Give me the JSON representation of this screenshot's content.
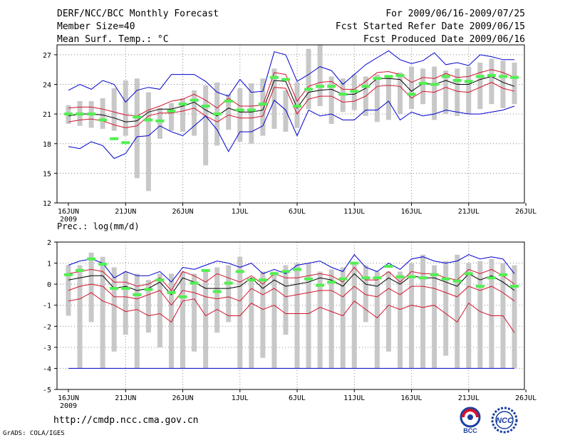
{
  "header": {
    "title": "DERF/NCC/BCC Monthly Forecast",
    "member_size": "Member Size=40",
    "variable": "Mean Surf. Temp.: °C",
    "period": "For 2009/06/16-2009/07/25",
    "start_date": "Fcst Started Refer Date 2009/06/15",
    "produced_date": "Fcst Produced Date 2009/06/16"
  },
  "precip_label": "Prec.: log(mm/d)",
  "footer": {
    "url": "http://cmdp.ncc.cma.gov.cn",
    "grads": "GrADS: COLA/IGES",
    "logo_bcc": "BCC",
    "logo_ncc": "NCC"
  },
  "colors": {
    "box": "#c8c8c8",
    "obs": "#50f050",
    "mean": "#000000",
    "spread": "#d2142d",
    "extreme": "#0000d0",
    "grid": "#888888"
  },
  "chart_data": [
    {
      "type": "box-ensemble",
      "title": "Mean Surf. Temp.: °C",
      "x_labels": [
        "16JUN",
        "21JUN",
        "26JUN",
        "1JUL",
        "6JUL",
        "11JUL",
        "16JUL",
        "21JUL",
        "26JUL"
      ],
      "x_sublabel": "2009",
      "days": 40,
      "ylim": [
        12,
        28
      ],
      "yticks": [
        12,
        15,
        18,
        21,
        24,
        27
      ],
      "box_low": [
        20.0,
        19.8,
        19.6,
        19.5,
        19.3,
        18.8,
        14.5,
        13.2,
        18.5,
        19.3,
        19.2,
        18.8,
        15.8,
        17.8,
        19.4,
        18.2,
        18.0,
        18.8,
        19.5,
        19.2,
        19.6,
        21.5,
        21.8,
        20.0,
        21.2,
        21.4,
        20.8,
        20.2,
        20.4,
        21.0,
        21.5,
        22.0,
        20.4,
        21.0,
        20.8,
        21.0,
        21.5,
        22.0,
        21.6,
        22.0
      ],
      "box_high": [
        21.9,
        22.3,
        22.3,
        22.6,
        23.6,
        24.4,
        24.6,
        23.2,
        21.6,
        22.1,
        22.6,
        23.4,
        23.9,
        24.2,
        23.0,
        23.6,
        24.1,
        24.6,
        25.6,
        23.4,
        24.2,
        27.6,
        28.0,
        24.8,
        24.6,
        25.0,
        24.8,
        25.0,
        24.8,
        25.2,
        25.8,
        25.6,
        25.8,
        25.4,
        25.6,
        25.8,
        26.2,
        26.6,
        26.4,
        26.2
      ],
      "obs": [
        21.0,
        21.0,
        21.0,
        20.4,
        18.5,
        18.1,
        20.7,
        20.4,
        20.3,
        21.3,
        22.0,
        22.4,
        21.8,
        21.0,
        22.3,
        21.4,
        21.4,
        22.0,
        24.7,
        24.5,
        21.8,
        23.5,
        23.8,
        23.8,
        23.0,
        23.3,
        23.8,
        24.6,
        24.8,
        24.9,
        23.0,
        24.1,
        24.0,
        24.8,
        24.4,
        24.3,
        24.8,
        24.9,
        24.8,
        24.7
      ],
      "series": [
        {
          "name": "max",
          "color": "#0000d0",
          "values": [
            23.4,
            24.0,
            23.5,
            24.4,
            24.0,
            22.2,
            23.4,
            23.7,
            23.5,
            25.0,
            25.0,
            25.0,
            24.3,
            23.2,
            22.8,
            24.5,
            23.2,
            23.3,
            27.3,
            27.0,
            24.3,
            25.0,
            25.8,
            25.4,
            24.0,
            25.0,
            26.0,
            26.7,
            27.4,
            26.5,
            26.1,
            26.4,
            27.2,
            26.0,
            26.2,
            25.9,
            27.0,
            26.8,
            26.5,
            26.5
          ]
        },
        {
          "name": "upper",
          "color": "#d2142d",
          "values": [
            21.6,
            21.7,
            21.7,
            21.5,
            21.2,
            20.9,
            20.8,
            21.4,
            21.8,
            22.3,
            22.5,
            23.0,
            22.4,
            21.6,
            22.6,
            21.8,
            21.8,
            21.9,
            25.2,
            25.0,
            22.3,
            23.8,
            24.2,
            24.3,
            23.5,
            23.5,
            24.3,
            25.2,
            25.3,
            25.0,
            24.2,
            24.7,
            24.6,
            25.1,
            24.7,
            24.8,
            25.2,
            25.5,
            25.2,
            24.7
          ]
        },
        {
          "name": "mean",
          "color": "#000000",
          "values": [
            20.8,
            21.0,
            21.0,
            20.9,
            20.6,
            20.2,
            20.3,
            21.2,
            21.5,
            21.5,
            21.8,
            22.2,
            21.4,
            20.8,
            21.6,
            21.2,
            21.2,
            21.4,
            24.4,
            24.3,
            21.6,
            23.2,
            23.4,
            23.5,
            23.0,
            23.0,
            23.6,
            24.6,
            24.6,
            24.5,
            23.3,
            24.1,
            24.0,
            24.4,
            24.0,
            24.0,
            24.5,
            24.8,
            24.2,
            23.8
          ]
        },
        {
          "name": "lower",
          "color": "#d2142d",
          "values": [
            20.2,
            20.4,
            20.5,
            20.3,
            19.9,
            19.6,
            19.8,
            20.8,
            21.1,
            21.1,
            21.3,
            21.6,
            20.8,
            20.2,
            20.9,
            20.6,
            20.6,
            20.8,
            23.7,
            23.6,
            21.0,
            22.5,
            22.8,
            22.8,
            22.2,
            22.3,
            22.8,
            23.8,
            23.9,
            23.8,
            22.6,
            23.3,
            23.2,
            23.7,
            23.3,
            23.2,
            23.7,
            24.2,
            23.6,
            23.3
          ]
        },
        {
          "name": "min",
          "color": "#0000d0",
          "values": [
            17.7,
            17.5,
            18.2,
            17.8,
            16.5,
            17.0,
            18.7,
            18.8,
            19.8,
            19.2,
            18.8,
            19.8,
            20.8,
            19.4,
            17.2,
            19.2,
            19.2,
            19.8,
            22.4,
            21.4,
            18.8,
            21.4,
            20.8,
            21.0,
            20.4,
            20.4,
            21.4,
            21.4,
            22.3,
            20.4,
            21.2,
            20.8,
            21.0,
            21.4,
            21.2,
            21.0,
            21.0,
            21.2,
            21.4,
            21.8
          ]
        }
      ]
    },
    {
      "type": "box-ensemble",
      "title": "Prec.: log(mm/d)",
      "x_labels": [
        "16JUN",
        "21JUN",
        "26JUN",
        "1JUL",
        "6JUL",
        "11JUL",
        "16JUL",
        "21JUL",
        "26JUL"
      ],
      "x_sublabel": "2009",
      "days": 40,
      "ylim": [
        -5,
        2
      ],
      "yticks": [
        -5,
        -4,
        -3,
        -2,
        -1,
        0,
        1,
        2
      ],
      "box_low": [
        -1.5,
        -4.0,
        -1.8,
        -4.0,
        -3.2,
        -2.4,
        -4.0,
        -2.3,
        -3.0,
        -4.0,
        -4.0,
        -3.2,
        -4.0,
        -2.3,
        -1.8,
        -4.0,
        -4.0,
        -3.5,
        -4.0,
        -2.4,
        -4.0,
        -4.0,
        -4.0,
        -4.0,
        -4.0,
        -4.0,
        -1.8,
        -4.0,
        -3.2,
        -4.0,
        -4.0,
        -4.0,
        -4.0,
        -3.4,
        -4.0,
        -4.0,
        -4.0,
        -4.0,
        -4.0,
        -4.0
      ],
      "box_high": [
        0.9,
        0.9,
        1.5,
        1.3,
        0.8,
        0.6,
        0.5,
        0.2,
        0.5,
        0.5,
        0.6,
        0.5,
        0.6,
        0.8,
        0.9,
        1.3,
        0.3,
        0.6,
        0.6,
        0.9,
        1.0,
        1.0,
        0.6,
        0.7,
        0.8,
        1.0,
        0.9,
        0.6,
        0.6,
        0.6,
        1.0,
        1.4,
        0.9,
        1.1,
        1.4,
        1.0,
        1.1,
        1.2,
        1.0,
        0.9
      ],
      "obs": [
        0.45,
        0.65,
        1.2,
        0.95,
        -0.2,
        -0.2,
        -0.5,
        -0.25,
        0.2,
        -0.4,
        -0.6,
        0.05,
        0.65,
        -0.35,
        0.05,
        0.6,
        0.2,
        0.2,
        0.5,
        0.6,
        0.7,
        0.25,
        -0.05,
        0.1,
        0.25,
        1.0,
        0.3,
        0.3,
        0.85,
        0.35,
        0.35,
        0.3,
        0.45,
        0.25,
        0.15,
        0.5,
        -0.1,
        0.3,
        0.45,
        -0.1
      ],
      "series": [
        {
          "name": "max",
          "color": "#0000d0",
          "values": [
            0.9,
            1.1,
            1.2,
            1.0,
            0.3,
            0.6,
            0.4,
            0.4,
            0.6,
            0.1,
            0.8,
            0.7,
            0.9,
            1.1,
            1.0,
            0.8,
            1.0,
            0.5,
            0.7,
            0.5,
            0.9,
            1.0,
            1.1,
            0.8,
            0.6,
            1.4,
            0.8,
            0.6,
            1.0,
            0.7,
            1.2,
            1.3,
            1.1,
            1.0,
            1.1,
            1.4,
            1.2,
            1.3,
            1.2,
            0.5
          ]
        },
        {
          "name": "upper",
          "color": "#d2142d",
          "values": [
            0.5,
            0.6,
            0.7,
            0.6,
            0.1,
            0.1,
            -0.1,
            0.0,
            0.3,
            -0.3,
            0.6,
            0.4,
            0.1,
            0.5,
            0.3,
            0.1,
            0.4,
            0.0,
            0.5,
            0.3,
            0.3,
            0.4,
            0.5,
            0.4,
            0.1,
            0.8,
            0.2,
            0.2,
            0.6,
            0.1,
            0.6,
            0.5,
            0.5,
            0.3,
            0.2,
            0.7,
            0.5,
            0.7,
            0.4,
            0.0
          ]
        },
        {
          "name": "mean",
          "color": "#000000",
          "values": [
            0.2,
            0.3,
            0.4,
            0.4,
            -0.2,
            -0.1,
            -0.3,
            -0.2,
            0.1,
            -0.5,
            0.3,
            0.1,
            -0.2,
            -0.2,
            -0.2,
            -0.1,
            0.3,
            -0.2,
            0.2,
            -0.1,
            0.0,
            0.1,
            0.3,
            0.2,
            -0.1,
            0.5,
            0.0,
            -0.1,
            0.3,
            0.0,
            0.4,
            0.3,
            0.3,
            0.1,
            -0.1,
            0.5,
            0.2,
            0.4,
            0.1,
            -0.3
          ]
        },
        {
          "name": "lower",
          "color": "#d2142d",
          "values": [
            -0.3,
            -0.1,
            0.0,
            -0.1,
            -0.6,
            -0.6,
            -0.7,
            -0.5,
            -0.3,
            -1.0,
            -0.3,
            -0.4,
            -0.6,
            -0.7,
            -0.6,
            -0.8,
            -0.2,
            -0.5,
            -0.2,
            -0.6,
            -0.5,
            -0.4,
            -0.3,
            -0.3,
            -0.6,
            -0.1,
            -0.5,
            -0.6,
            -0.2,
            -0.5,
            -0.1,
            -0.1,
            -0.2,
            -0.4,
            -0.6,
            -0.1,
            -0.3,
            -0.1,
            -0.4,
            -0.8
          ]
        },
        {
          "name": "min",
          "color": "#d2142d",
          "values": [
            -0.8,
            -0.7,
            -0.4,
            -0.8,
            -1.0,
            -1.3,
            -1.2,
            -1.5,
            -1.4,
            -1.8,
            -0.8,
            -0.7,
            -1.5,
            -1.2,
            -1.5,
            -1.5,
            -0.9,
            -1.2,
            -1.0,
            -1.4,
            -1.4,
            -1.4,
            -1.1,
            -1.3,
            -1.5,
            -0.8,
            -1.2,
            -1.6,
            -1.0,
            -1.2,
            -1.0,
            -1.1,
            -1.0,
            -1.4,
            -1.8,
            -0.9,
            -1.3,
            -1.5,
            -1.5,
            -2.3
          ]
        },
        {
          "name": "floor",
          "color": "#0000d0",
          "values": [
            -4,
            -4,
            -4,
            -4,
            -4,
            -4,
            -4,
            -4,
            -4,
            -4,
            -4,
            -4,
            -4,
            -4,
            -4,
            -4,
            -4,
            -4,
            -4,
            -4,
            -4,
            -4,
            -4,
            -4,
            -4,
            -4,
            -4,
            -4,
            -4,
            -4,
            -4,
            -4,
            -4,
            -4,
            -4,
            -4,
            -4,
            -4,
            -4,
            -4
          ]
        }
      ]
    }
  ]
}
